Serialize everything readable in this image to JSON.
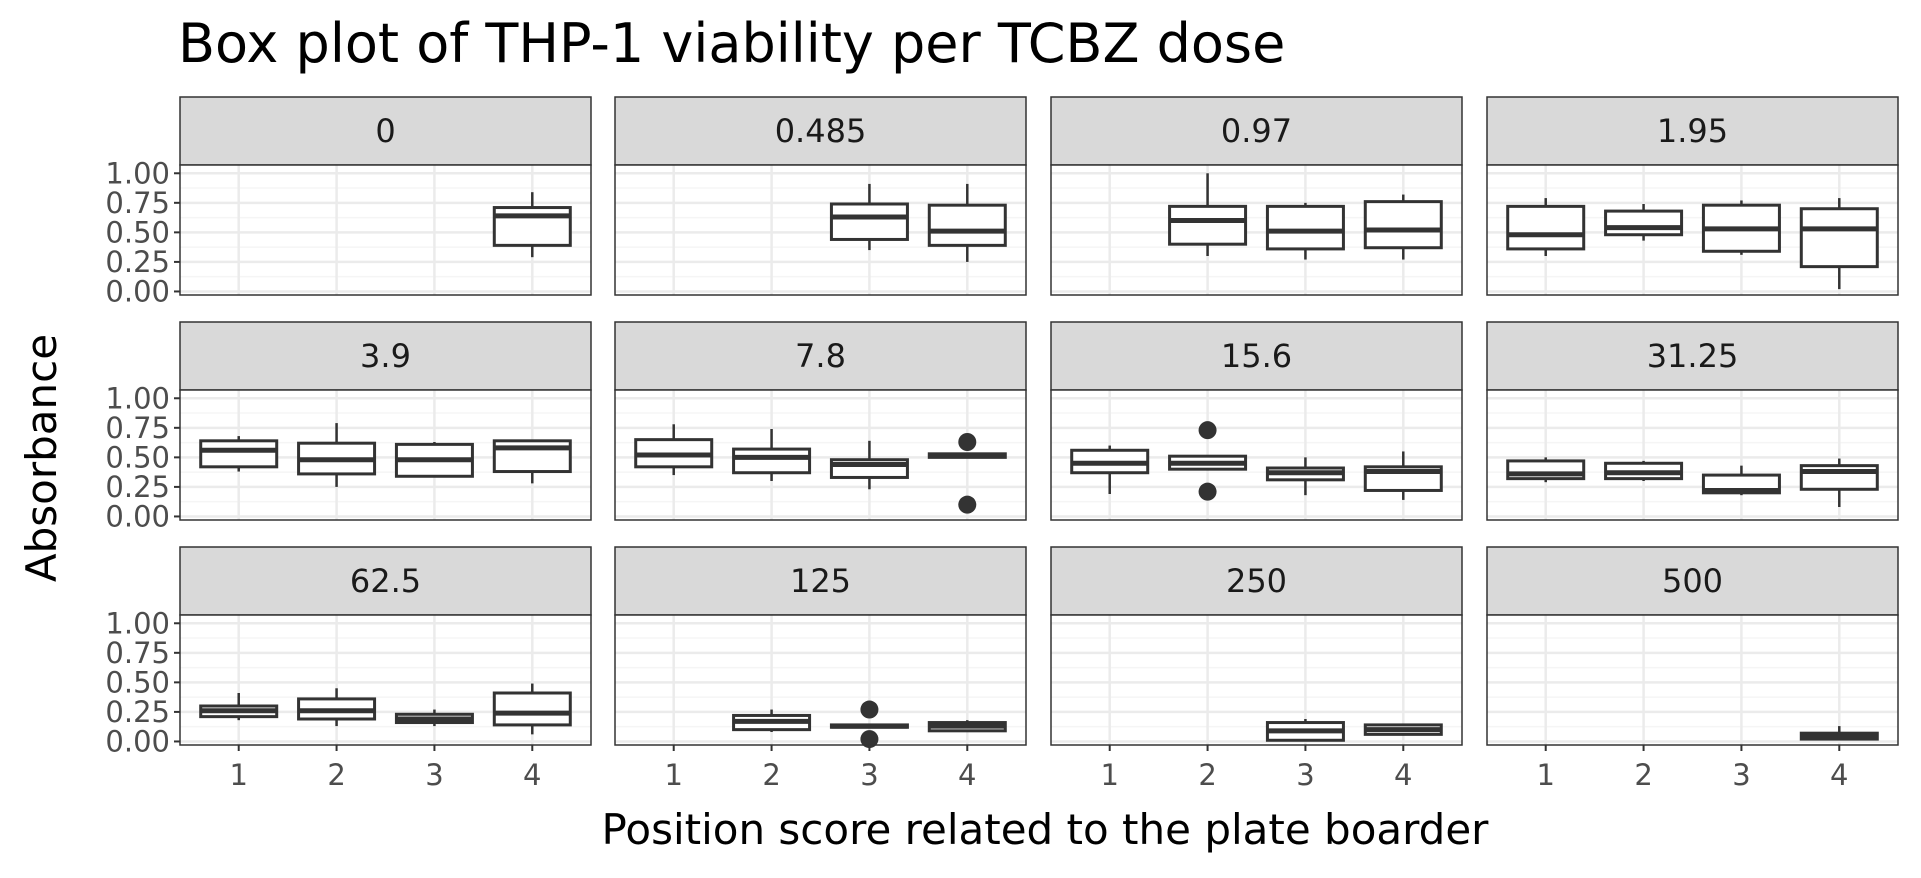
{
  "chart_data": {
    "type": "boxplot",
    "title": "Box plot of THP-1 viability per TCBZ dose",
    "xlabel": "Position score related to the plate boarder",
    "ylabel": "Absorbance",
    "ylim": [
      -0.03,
      1.07
    ],
    "y_ticks": [
      "0.00",
      "0.25",
      "0.50",
      "0.75",
      "1.00"
    ],
    "x_ticks": [
      "1",
      "2",
      "3",
      "4"
    ],
    "grid": true,
    "legend": "none",
    "facet_rows": 3,
    "facet_cols": 4,
    "colors": {
      "box_stroke": "#333333",
      "box_fill": "#ffffff",
      "panel_border": "#333333",
      "strip_fill": "#d9d9d9",
      "grid_major": "#ebebeb",
      "grid_minor": "#f5f5f5"
    },
    "panels": [
      {
        "label": "0",
        "boxes": [
          {
            "x": 4,
            "whisker_low": 0.29,
            "q1": 0.39,
            "median": 0.64,
            "q3": 0.71,
            "whisker_high": 0.84,
            "outliers": []
          }
        ]
      },
      {
        "label": "0.485",
        "boxes": [
          {
            "x": 3,
            "whisker_low": 0.35,
            "q1": 0.44,
            "median": 0.63,
            "q3": 0.74,
            "whisker_high": 0.91,
            "outliers": []
          },
          {
            "x": 4,
            "whisker_low": 0.25,
            "q1": 0.39,
            "median": 0.51,
            "q3": 0.73,
            "whisker_high": 0.91,
            "outliers": []
          }
        ]
      },
      {
        "label": "0.97",
        "boxes": [
          {
            "x": 2,
            "whisker_low": 0.3,
            "q1": 0.4,
            "median": 0.6,
            "q3": 0.72,
            "whisker_high": 1.0,
            "outliers": []
          },
          {
            "x": 3,
            "whisker_low": 0.27,
            "q1": 0.36,
            "median": 0.51,
            "q3": 0.72,
            "whisker_high": 0.75,
            "outliers": []
          },
          {
            "x": 4,
            "whisker_low": 0.27,
            "q1": 0.37,
            "median": 0.52,
            "q3": 0.76,
            "whisker_high": 0.82,
            "outliers": []
          }
        ]
      },
      {
        "label": "1.95",
        "boxes": [
          {
            "x": 1,
            "whisker_low": 0.3,
            "q1": 0.36,
            "median": 0.48,
            "q3": 0.72,
            "whisker_high": 0.79,
            "outliers": []
          },
          {
            "x": 2,
            "whisker_low": 0.43,
            "q1": 0.48,
            "median": 0.54,
            "q3": 0.68,
            "whisker_high": 0.74,
            "outliers": []
          },
          {
            "x": 3,
            "whisker_low": 0.31,
            "q1": 0.34,
            "median": 0.53,
            "q3": 0.73,
            "whisker_high": 0.77,
            "outliers": []
          },
          {
            "x": 4,
            "whisker_low": 0.02,
            "q1": 0.21,
            "median": 0.53,
            "q3": 0.7,
            "whisker_high": 0.79,
            "outliers": []
          }
        ]
      },
      {
        "label": "3.9",
        "boxes": [
          {
            "x": 1,
            "whisker_low": 0.38,
            "q1": 0.42,
            "median": 0.56,
            "q3": 0.64,
            "whisker_high": 0.68,
            "outliers": []
          },
          {
            "x": 2,
            "whisker_low": 0.25,
            "q1": 0.36,
            "median": 0.48,
            "q3": 0.62,
            "whisker_high": 0.79,
            "outliers": []
          },
          {
            "x": 3,
            "whisker_low": 0.33,
            "q1": 0.34,
            "median": 0.48,
            "q3": 0.61,
            "whisker_high": 0.63,
            "outliers": []
          },
          {
            "x": 4,
            "whisker_low": 0.28,
            "q1": 0.38,
            "median": 0.58,
            "q3": 0.64,
            "whisker_high": 0.65,
            "outliers": []
          }
        ]
      },
      {
        "label": "7.8",
        "boxes": [
          {
            "x": 1,
            "whisker_low": 0.35,
            "q1": 0.42,
            "median": 0.52,
            "q3": 0.65,
            "whisker_high": 0.78,
            "outliers": []
          },
          {
            "x": 2,
            "whisker_low": 0.3,
            "q1": 0.37,
            "median": 0.5,
            "q3": 0.57,
            "whisker_high": 0.74,
            "outliers": []
          },
          {
            "x": 3,
            "whisker_low": 0.23,
            "q1": 0.33,
            "median": 0.44,
            "q3": 0.48,
            "whisker_high": 0.64,
            "outliers": []
          },
          {
            "x": 4,
            "whisker_low": 0.5,
            "q1": 0.5,
            "median": 0.52,
            "q3": 0.53,
            "whisker_high": 0.53,
            "outliers": [
              0.63,
              0.1
            ]
          }
        ]
      },
      {
        "label": "15.6",
        "boxes": [
          {
            "x": 1,
            "whisker_low": 0.19,
            "q1": 0.37,
            "median": 0.45,
            "q3": 0.56,
            "whisker_high": 0.6,
            "outliers": []
          },
          {
            "x": 2,
            "whisker_low": 0.39,
            "q1": 0.4,
            "median": 0.45,
            "q3": 0.51,
            "whisker_high": 0.52,
            "outliers": [
              0.73,
              0.21
            ]
          },
          {
            "x": 3,
            "whisker_low": 0.18,
            "q1": 0.31,
            "median": 0.37,
            "q3": 0.41,
            "whisker_high": 0.5,
            "outliers": []
          },
          {
            "x": 4,
            "whisker_low": 0.14,
            "q1": 0.22,
            "median": 0.38,
            "q3": 0.42,
            "whisker_high": 0.55,
            "outliers": []
          }
        ]
      },
      {
        "label": "31.25",
        "boxes": [
          {
            "x": 1,
            "whisker_low": 0.29,
            "q1": 0.32,
            "median": 0.36,
            "q3": 0.47,
            "whisker_high": 0.5,
            "outliers": []
          },
          {
            "x": 2,
            "whisker_low": 0.3,
            "q1": 0.32,
            "median": 0.37,
            "q3": 0.45,
            "whisker_high": 0.47,
            "outliers": []
          },
          {
            "x": 3,
            "whisker_low": 0.18,
            "q1": 0.2,
            "median": 0.22,
            "q3": 0.35,
            "whisker_high": 0.43,
            "outliers": []
          },
          {
            "x": 4,
            "whisker_low": 0.08,
            "q1": 0.23,
            "median": 0.38,
            "q3": 0.43,
            "whisker_high": 0.49,
            "outliers": []
          }
        ]
      },
      {
        "label": "62.5",
        "boxes": [
          {
            "x": 1,
            "whisker_low": 0.18,
            "q1": 0.21,
            "median": 0.26,
            "q3": 0.3,
            "whisker_high": 0.41,
            "outliers": []
          },
          {
            "x": 2,
            "whisker_low": 0.13,
            "q1": 0.19,
            "median": 0.26,
            "q3": 0.36,
            "whisker_high": 0.45,
            "outliers": []
          },
          {
            "x": 3,
            "whisker_low": 0.13,
            "q1": 0.16,
            "median": 0.19,
            "q3": 0.23,
            "whisker_high": 0.27,
            "outliers": []
          },
          {
            "x": 4,
            "whisker_low": 0.06,
            "q1": 0.14,
            "median": 0.24,
            "q3": 0.41,
            "whisker_high": 0.49,
            "outliers": []
          }
        ]
      },
      {
        "label": "125",
        "boxes": [
          {
            "x": 2,
            "whisker_low": 0.08,
            "q1": 0.1,
            "median": 0.17,
            "q3": 0.22,
            "whisker_high": 0.27,
            "outliers": []
          },
          {
            "x": 3,
            "whisker_low": 0.12,
            "q1": 0.12,
            "median": 0.13,
            "q3": 0.14,
            "whisker_high": 0.14,
            "outliers": [
              0.27,
              0.02
            ]
          },
          {
            "x": 4,
            "whisker_low": 0.08,
            "q1": 0.09,
            "median": 0.13,
            "q3": 0.16,
            "whisker_high": 0.18,
            "outliers": []
          }
        ]
      },
      {
        "label": "250",
        "boxes": [
          {
            "x": 3,
            "whisker_low": 0.0,
            "q1": 0.01,
            "median": 0.09,
            "q3": 0.16,
            "whisker_high": 0.19,
            "outliers": []
          },
          {
            "x": 4,
            "whisker_low": 0.05,
            "q1": 0.06,
            "median": 0.1,
            "q3": 0.14,
            "whisker_high": 0.15,
            "outliers": []
          }
        ]
      },
      {
        "label": "500",
        "boxes": [
          {
            "x": 4,
            "whisker_low": 0.01,
            "q1": 0.02,
            "median": 0.05,
            "q3": 0.07,
            "whisker_high": 0.13,
            "outliers": []
          }
        ]
      }
    ]
  }
}
